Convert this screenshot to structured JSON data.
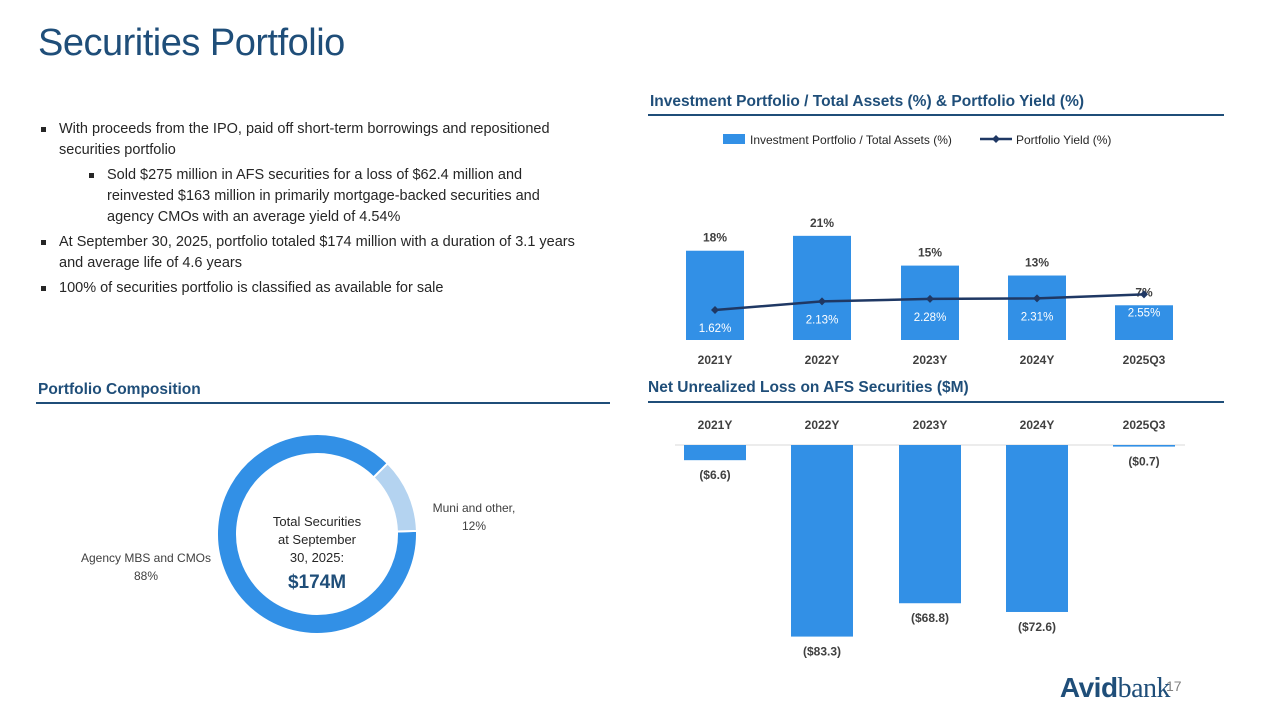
{
  "page": {
    "title": "Securities Portfolio",
    "page_number": "17",
    "logo": {
      "bold": "Avid",
      "light": "bank"
    }
  },
  "bullets": [
    {
      "text": "With proceeds from the IPO, paid off short-term borrowings and repositioned securities portfolio",
      "level": 1
    },
    {
      "text": "Sold $275 million in AFS securities for a loss of $62.4 million and reinvested $163 million in primarily mortgage-backed securities and agency CMOs with an average yield of 4.54%",
      "level": 2
    },
    {
      "text": "At September 30, 2025, portfolio totaled $174 million with a duration of 3.1 years and average life of 4.6 years",
      "level": 1
    },
    {
      "text": "100% of securities portfolio is classified as available for sale",
      "level": 1
    }
  ],
  "sections": {
    "composition": "Portfolio Composition",
    "investment": "Investment Portfolio / Total Assets (%) & Portfolio Yield (%)",
    "unrealized": "Net Unrealized Loss on AFS Securities ($M)"
  },
  "colors": {
    "bar": "#3290e6",
    "line": "#1f3864",
    "donut_main": "#3290e6",
    "donut_other": "#b4d3f0",
    "heading": "#1f4e79"
  },
  "chart_data": [
    {
      "type": "bar",
      "title": "Investment Portfolio / Total Assets (%) & Portfolio Yield (%)",
      "categories": [
        "2021Y",
        "2022Y",
        "2023Y",
        "2024Y",
        "2025Q3"
      ],
      "series": [
        {
          "name": "Investment Portfolio / Total Assets (%)",
          "kind": "bar",
          "values": [
            18,
            21,
            15,
            13,
            7
          ],
          "labels": [
            "18%",
            "21%",
            "15%",
            "13%",
            "7%"
          ]
        },
        {
          "name": "Portfolio Yield (%)",
          "kind": "line",
          "values": [
            1.62,
            2.13,
            2.28,
            2.31,
            2.55
          ],
          "labels": [
            "1.62%",
            "2.13%",
            "2.28%",
            "2.31%",
            "2.55%"
          ]
        }
      ],
      "legend": "top"
    },
    {
      "type": "bar",
      "title": "Net Unrealized Loss on AFS Securities ($M)",
      "categories": [
        "2021Y",
        "2022Y",
        "2023Y",
        "2024Y",
        "2025Q3"
      ],
      "values": [
        -6.6,
        -83.3,
        -68.8,
        -72.6,
        -0.7
      ],
      "labels": [
        "($6.6)",
        "($83.3)",
        "($68.8)",
        "($72.6)",
        "($0.7)"
      ]
    },
    {
      "type": "pie",
      "title": "Portfolio Composition",
      "slices": [
        {
          "label": "Agency MBS and CMOs, 88%",
          "value": 88
        },
        {
          "label": "Muni and other, 12%",
          "value": 12
        }
      ],
      "center_text": "Total Securities at September 30, 2025:",
      "center_value": "$174M"
    }
  ]
}
